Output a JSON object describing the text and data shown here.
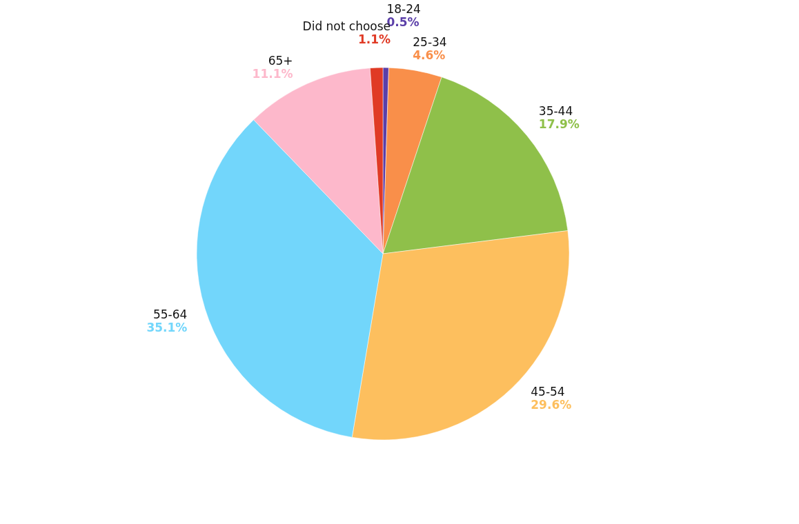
{
  "chart_data": {
    "type": "pie",
    "categories": [
      "18-24",
      "25-34",
      "35-44",
      "45-54",
      "55-64",
      "65+",
      "Did not choose"
    ],
    "values": [
      0.5,
      4.6,
      17.9,
      29.6,
      35.1,
      11.1,
      1.1
    ],
    "colors": [
      "#5b3fa8",
      "#f98f4a",
      "#8fc04a",
      "#fdbf5e",
      "#72d6fb",
      "#fdb8cb",
      "#e03a25"
    ],
    "value_labels": [
      "0.5%",
      "4.6%",
      "17.9%",
      "29.6%",
      "35.1%",
      "11.1%",
      "1.1%"
    ],
    "legend": false
  }
}
